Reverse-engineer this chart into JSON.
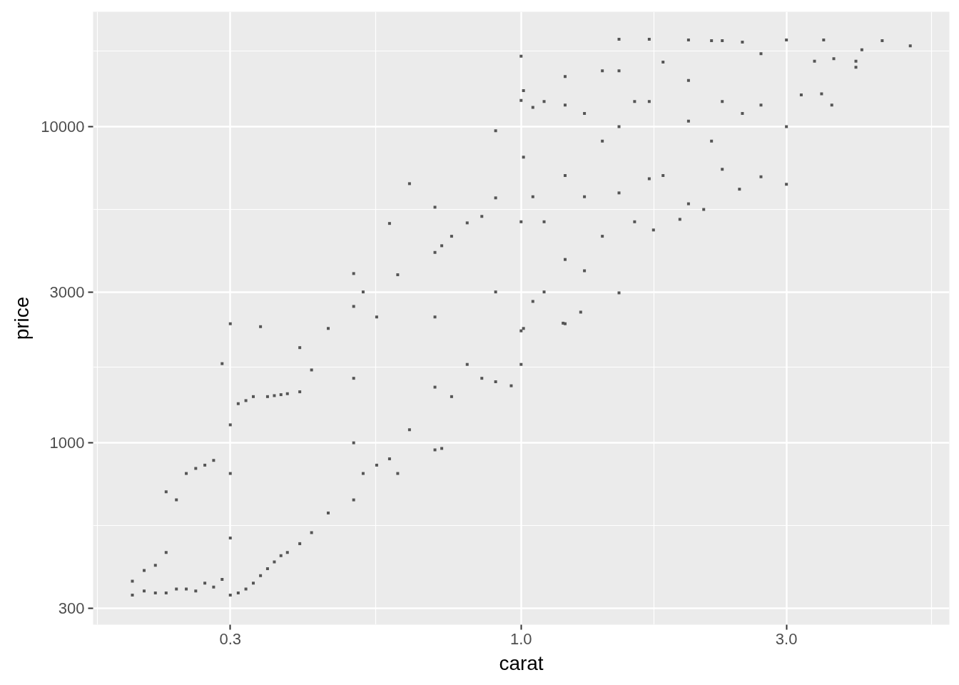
{
  "chart_data": {
    "type": "scatter",
    "xlabel": "carat",
    "ylabel": "price",
    "log": "xy",
    "grid": true,
    "marker": "square",
    "xlim": [
      0.17,
      5.89
    ],
    "ylim": [
      266,
      23070
    ],
    "xticks": [
      {
        "value": 0.3,
        "label": "0.3"
      },
      {
        "value": 1,
        "label": "1.0"
      },
      {
        "value": 3,
        "label": "3.0"
      }
    ],
    "yticks": [
      300,
      1000,
      3000,
      10000
    ],
    "color": "#555555",
    "x": [
      0.2,
      0.2,
      0.21,
      0.21,
      0.22,
      0.22,
      0.23,
      0.23,
      0.23,
      0.24,
      0.24,
      0.25,
      0.25,
      0.26,
      0.26,
      0.27,
      0.27,
      0.28,
      0.28,
      0.29,
      0.29,
      0.3,
      0.3,
      0.3,
      0.3,
      0.3,
      0.31,
      0.31,
      0.32,
      0.32,
      0.33,
      0.33,
      0.34,
      0.34,
      0.35,
      0.35,
      0.36,
      0.36,
      0.37,
      0.37,
      0.38,
      0.38,
      0.4,
      0.4,
      0.4,
      0.42,
      0.42,
      0.45,
      0.45,
      0.5,
      0.5,
      0.5,
      0.5,
      0.5,
      0.52,
      0.52,
      0.55,
      0.55,
      0.58,
      0.58,
      0.6,
      0.6,
      0.63,
      0.63,
      0.7,
      0.7,
      0.7,
      0.7,
      0.7,
      0.72,
      0.72,
      0.75,
      0.75,
      0.8,
      0.8,
      0.85,
      0.85,
      0.9,
      0.9,
      0.9,
      0.9,
      0.96,
      1.0,
      1.0,
      1.0,
      1.0,
      1.0,
      1.01,
      1.01,
      1.01,
      1.05,
      1.05,
      1.05,
      1.1,
      1.1,
      1.1,
      1.19,
      1.2,
      1.2,
      1.2,
      1.2,
      1.2,
      1.28,
      1.3,
      1.3,
      1.3,
      1.4,
      1.4,
      1.4,
      1.5,
      1.5,
      1.5,
      1.5,
      1.5,
      1.6,
      1.6,
      1.73,
      1.7,
      1.7,
      1.7,
      1.8,
      1.8,
      1.93,
      2.0,
      2.0,
      2.0,
      2.0,
      2.13,
      2.2,
      2.2,
      2.3,
      2.3,
      2.3,
      2.47,
      2.5,
      2.5,
      2.7,
      2.7,
      2.7,
      3.0,
      3.0,
      3.0,
      3.19,
      3.37,
      3.47,
      3.5,
      3.62,
      3.65,
      4.0,
      4.0,
      4.1,
      4.46,
      5.01
    ],
    "values": [
      330,
      365,
      340,
      395,
      335,
      410,
      335,
      450,
      700,
      345,
      660,
      345,
      800,
      340,
      830,
      360,
      850,
      350,
      880,
      370,
      1780,
      330,
      500,
      800,
      1140,
      2380,
      335,
      1330,
      345,
      1360,
      360,
      1400,
      380,
      2330,
      400,
      1400,
      420,
      1410,
      440,
      1420,
      450,
      1430,
      480,
      1450,
      2000,
      520,
      1700,
      600,
      2300,
      660,
      1000,
      1600,
      2700,
      3430,
      800,
      3000,
      850,
      2500,
      890,
      4940,
      800,
      3400,
      1100,
      6600,
      950,
      1500,
      2500,
      4000,
      5560,
      960,
      4200,
      1400,
      4500,
      1770,
      4960,
      1600,
      5200,
      1560,
      3000,
      5950,
      9700,
      1515,
      1770,
      2260,
      5000,
      12100,
      16700,
      2300,
      8000,
      13000,
      2800,
      6000,
      11500,
      3000,
      5000,
      12000,
      2390,
      2380,
      3800,
      7000,
      11700,
      14400,
      2590,
      3500,
      6000,
      11000,
      4500,
      9000,
      15000,
      2980,
      6170,
      10000,
      15000,
      18900,
      5000,
      12000,
      4710,
      6840,
      12000,
      18900,
      7000,
      16000,
      5090,
      5700,
      10400,
      14000,
      18800,
      5470,
      9000,
      18700,
      7330,
      12000,
      18700,
      6340,
      11000,
      18500,
      6940,
      11700,
      17000,
      6570,
      10000,
      18800,
      12600,
      16100,
      12700,
      18800,
      11700,
      16400,
      15400,
      16100,
      17500,
      18700,
      18000
    ]
  }
}
